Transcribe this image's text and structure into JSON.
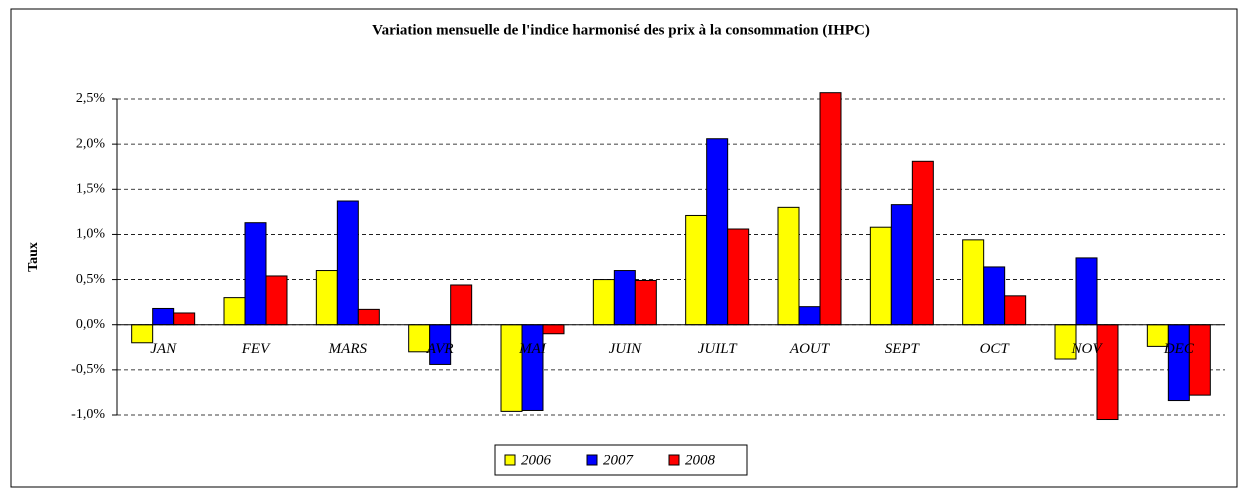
{
  "chart_data": {
    "type": "bar",
    "title": "Variation mensuelle de l'indice harmonisé des prix à la consommation (IHPC)",
    "y_label": "Taux",
    "categories": [
      "JAN",
      "FEV",
      "MARS",
      "AVR",
      "MAI",
      "JUIN",
      "JUILT",
      "AOUT",
      "SEPT",
      "OCT",
      "NOV",
      "DEC"
    ],
    "series": [
      {
        "name": "2006",
        "color": "#ffff00",
        "values": [
          -0.2,
          0.3,
          0.6,
          -0.3,
          -0.96,
          0.5,
          1.21,
          1.3,
          1.08,
          0.94,
          -0.38,
          -0.24
        ]
      },
      {
        "name": "2007",
        "color": "#0000ff",
        "values": [
          0.18,
          1.13,
          1.37,
          -0.44,
          -0.95,
          0.6,
          2.06,
          0.2,
          1.33,
          0.64,
          0.74,
          -0.84
        ]
      },
      {
        "name": "2008",
        "color": "#ff0000",
        "values": [
          0.13,
          0.54,
          0.17,
          0.44,
          -0.1,
          0.49,
          1.06,
          2.57,
          1.81,
          0.32,
          -1.05,
          -0.78
        ]
      }
    ],
    "ylim": [
      -1,
      2.5
    ],
    "yticks": [
      {
        "value": -1,
        "label": "-1,0%"
      },
      {
        "value": -0.5,
        "label": "-0,5%"
      },
      {
        "value": 0,
        "label": "0,0%"
      },
      {
        "value": 0.5,
        "label": "0,5%"
      },
      {
        "value": 1,
        "label": "1,0%"
      },
      {
        "value": 1.5,
        "label": "1,5%"
      },
      {
        "value": 2,
        "label": "2,0%"
      },
      {
        "value": 2.5,
        "label": "2,5%"
      }
    ],
    "grid": true,
    "legend": "bottom"
  }
}
